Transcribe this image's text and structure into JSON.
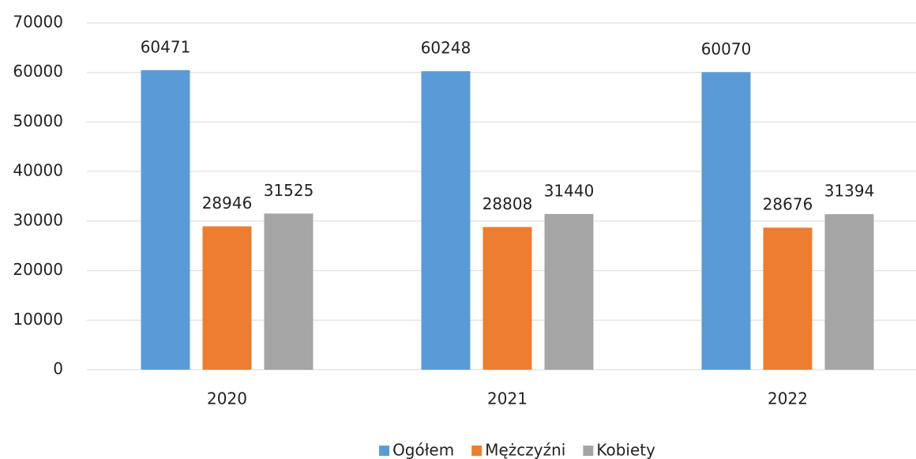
{
  "chart_data": {
    "type": "bar",
    "categories": [
      "2020",
      "2021",
      "2022"
    ],
    "series": [
      {
        "name": "Ogółem",
        "color": "#5b9bd5",
        "values": [
          60471,
          60248,
          60070
        ]
      },
      {
        "name": "Mężczyźni",
        "color": "#ed7d31",
        "values": [
          28946,
          28808,
          28676
        ]
      },
      {
        "name": "Kobiety",
        "color": "#a5a5a5",
        "values": [
          31525,
          31440,
          31394
        ]
      }
    ],
    "ylim": [
      0,
      70000
    ],
    "yticks": [
      0,
      10000,
      20000,
      30000,
      40000,
      50000,
      60000,
      70000
    ],
    "grid": true,
    "legend": "bottom"
  }
}
